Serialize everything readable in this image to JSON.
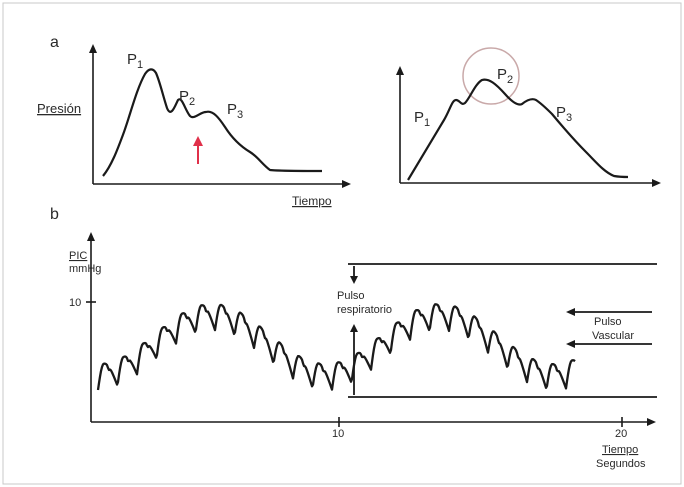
{
  "panel_a": {
    "label": "a",
    "left": {
      "ylabel": "Presión",
      "xlabel": "Tiempo",
      "peaks": [
        {
          "base": "P",
          "sub": "1"
        },
        {
          "base": "P",
          "sub": "2"
        },
        {
          "base": "P",
          "sub": "3"
        }
      ],
      "arrow_color": "#e0304a"
    },
    "right": {
      "peaks": [
        {
          "base": "P",
          "sub": "1"
        },
        {
          "base": "P",
          "sub": "2"
        },
        {
          "base": "P",
          "sub": "3"
        }
      ]
    }
  },
  "panel_b": {
    "label": "b",
    "ylabel_1": "PIC",
    "ylabel_2": "mmHg",
    "ytick": "10",
    "xticks": [
      "10",
      "20"
    ],
    "xlabel_1": "Tiempo",
    "xlabel_2": "Segundos",
    "resp_label_1": "Pulso",
    "resp_label_2": "respiratorio",
    "vasc_label_1": "Pulso",
    "vasc_label_2": "Vascular"
  },
  "colors": {
    "line": "#1a1a1a",
    "frame": "#bfbfbf",
    "circle": "#c9a9a9"
  }
}
